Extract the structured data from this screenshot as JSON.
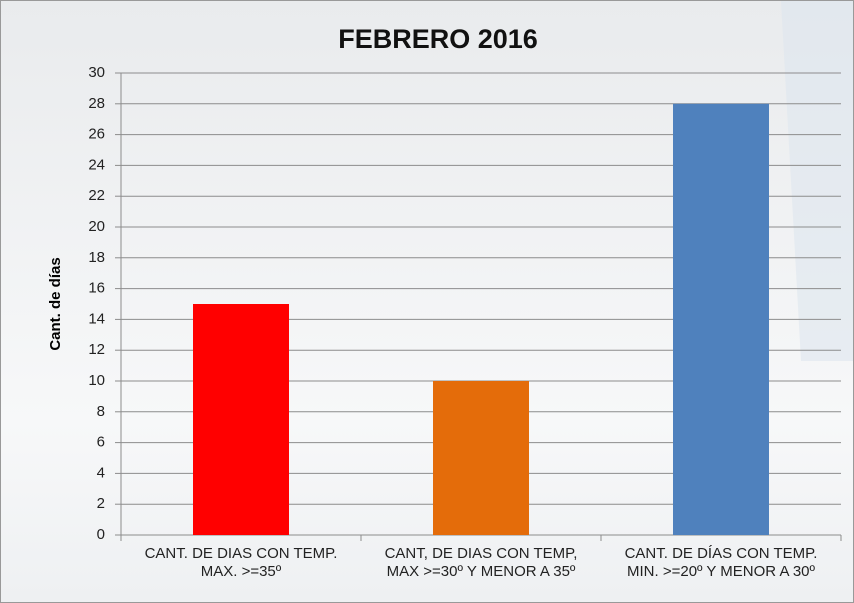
{
  "chart_data": {
    "type": "bar",
    "title": "FEBRERO 2016",
    "y_label": "Cant. de días",
    "categories": [
      "CANT. DE DIAS CON TEMP. MAX. >=35º",
      "CANT, DE DIAS CON TEMP, MAX >=30º Y MENOR A 35º",
      "CANT. DE DÍAS CON TEMP. MIN. >=20º Y MENOR A 30º"
    ],
    "values": [
      15,
      10,
      28
    ],
    "colors": [
      "#ff0000",
      "#e46c0a",
      "#4f81bd"
    ],
    "ylim": [
      0,
      30
    ],
    "yticks": [
      0,
      2,
      4,
      6,
      8,
      10,
      12,
      14,
      16,
      18,
      20,
      22,
      24,
      26,
      28,
      30
    ],
    "grid": true
  }
}
